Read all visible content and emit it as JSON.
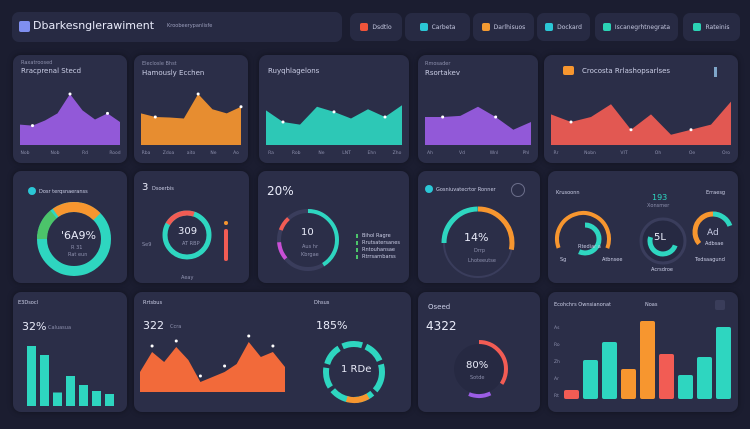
{
  "header": {
    "title": "Dbarkesnglerawiment",
    "subtitle": "Kroobeerypanlisfe",
    "nav": [
      {
        "label": "Dsdtlo",
        "color": "#f0543a"
      },
      {
        "label": "Carbeta",
        "color": "#2bc7d6"
      },
      {
        "label": "Darlhisuos",
        "color": "#f39a32"
      },
      {
        "label": "Dockard",
        "color": "#2bc7d6"
      },
      {
        "label": "Iscanegrhtnegrata",
        "color": "#2bd3b5"
      },
      {
        "label": "Rateinis",
        "color": "#2bd3b5"
      }
    ]
  },
  "row1": [
    {
      "label": "Raxatroosed",
      "title": "Rracprenal Stecd",
      "color": "#9b5de5",
      "values": [
        40,
        38,
        48,
        62,
        100,
        68,
        50,
        62,
        45
      ],
      "ticks": [
        "Nob",
        "Nob",
        "Rd",
        "Rood"
      ]
    },
    {
      "label": "Eleclosle Bhst",
      "title": "Hamously Ecchen",
      "color": "#f7962f",
      "values": [
        62,
        55,
        54,
        52,
        100,
        70,
        62,
        75
      ],
      "ticks": [
        "Rba",
        "Zdoa",
        "aito",
        "Ne",
        "Ao"
      ]
    },
    {
      "title": "Ruyqhlagelons",
      "color": "#2ed6c0",
      "values": [
        68,
        45,
        40,
        75,
        65,
        52,
        70,
        55,
        78
      ],
      "ticks": [
        "Ra",
        "Rob",
        "Ne",
        "LNT",
        "Ehn",
        "Zho"
      ]
    },
    {
      "label": "Rmosader",
      "title": "Rsortakev",
      "color": "#9b5de5",
      "values": [
        55,
        55,
        57,
        75,
        55,
        30,
        45
      ],
      "ticks": [
        "Ah",
        "Vd",
        "Wnl",
        "Phl"
      ]
    },
    {
      "title": "Crocosta Rrlashopsarlses",
      "color": "#f25c54",
      "values": [
        60,
        45,
        55,
        80,
        30,
        60,
        20,
        30,
        40,
        85
      ],
      "ticks": [
        "Rr",
        "Nobn",
        "VIT",
        "Oh",
        "Oe",
        "Oro"
      ]
    }
  ],
  "row2": {
    "c1": {
      "title": "Dosr terqsnaeranss",
      "value": "'6A9%",
      "sub": "R 31",
      "sub2": "Rat eun"
    },
    "c2": {
      "title": "Dsoerbis",
      "prefix": "3",
      "value": "309",
      "sub": "AT RBP",
      "side": "Se9",
      "foot": "Aeay"
    },
    "c3": {
      "value": "20%",
      "center": "10",
      "sub": "Aus hr",
      "sub2": "Kbrgae",
      "legend": [
        "Bihol Ragre",
        "Rrutsatersanes",
        "Rntouhansae",
        "Rtrrsarnbarss"
      ]
    },
    "c4": {
      "title": "Gosniuvatecrtor Ronner",
      "value": "14%",
      "sub": "Drrp",
      "sub2": "Lhoteeutse"
    },
    "c5": {
      "title": "Krusoonn",
      "right": "Erraesg",
      "stat": "193",
      "statsub": "Xonsmer",
      "g1": "Rtediar a",
      "g1foot": "Sg",
      "g1foot2": "Atbnsee",
      "g2": "5L",
      "g2foot": "Acrsdroe",
      "g3": "Ad",
      "g3sub": "Adbsae",
      "g3foot": "Tedsaagund"
    }
  },
  "row3": {
    "c1": {
      "title": "E3Dsocl",
      "value": "32%",
      "sub": "Caluasua",
      "bars": [
        80,
        68,
        18,
        40,
        28,
        20,
        16
      ]
    },
    "c2": {
      "title": "Rrtsbus",
      "value": "322",
      "sub": "Ccra",
      "values": [
        20,
        40,
        30,
        45,
        32,
        10,
        15,
        20,
        28,
        50,
        35,
        40,
        25
      ]
    },
    "c3": {
      "title": "Dhsus",
      "value": "185%",
      "center": "1 RDe"
    },
    "c4": {
      "title": "Oseed",
      "value": "4322",
      "center": "80%",
      "sub": "Sotde"
    },
    "c5": {
      "title": "Ecohchrs Ownsianonat",
      "mid": "Noas",
      "yticks": [
        "Rt",
        "Ar",
        "Zh",
        "Ro",
        "As"
      ],
      "bars": [
        {
          "v": 15,
          "c": "#f25c54"
        },
        {
          "v": 65,
          "c": "#2ed6c0"
        },
        {
          "v": 95,
          "c": "#2ed6c0"
        },
        {
          "v": 50,
          "c": "#f7962f"
        },
        {
          "v": 130,
          "c": "#f7962f"
        },
        {
          "v": 75,
          "c": "#f25c54"
        },
        {
          "v": 40,
          "c": "#2ed6c0"
        },
        {
          "v": 70,
          "c": "#2ed6c0"
        },
        {
          "v": 120,
          "c": "#2ed6c0"
        }
      ]
    }
  },
  "colors": {
    "bg": "#1b1d30",
    "card": "#2b2e48",
    "teal": "#2ed6c0",
    "orange": "#f7962f",
    "red": "#f25c54",
    "purple": "#9b5de5",
    "green": "#4cc46a"
  }
}
